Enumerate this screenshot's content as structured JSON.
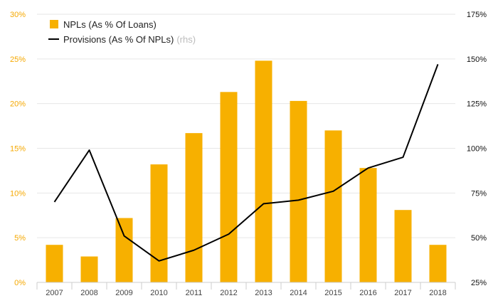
{
  "chart_data": {
    "type": "bar+line",
    "categories": [
      "2007",
      "2008",
      "2009",
      "2010",
      "2011",
      "2012",
      "2013",
      "2014",
      "2015",
      "2016",
      "2017",
      "2018"
    ],
    "series": [
      {
        "name": "NPLs (As % Of Loans)",
        "type": "bar",
        "axis": "left",
        "color": "#f7b000",
        "values": [
          4.2,
          2.9,
          7.2,
          13.2,
          16.7,
          21.3,
          24.8,
          20.3,
          17.0,
          12.8,
          8.1,
          4.2
        ]
      },
      {
        "name": "Provisions (As % Of NPLs)",
        "legend_suffix": "(rhs)",
        "type": "line",
        "axis": "right",
        "color": "#000000",
        "values": [
          70,
          99,
          51,
          37,
          43,
          52,
          69,
          71,
          76,
          89,
          95,
          147
        ]
      }
    ],
    "y_left": {
      "lim": [
        0,
        30
      ],
      "ticks": [
        0,
        5,
        10,
        15,
        20,
        25,
        30
      ],
      "tick_labels": [
        "0%",
        "5%",
        "10%",
        "15%",
        "20%",
        "25%",
        "30%"
      ],
      "color": "#f5a800"
    },
    "y_right": {
      "lim": [
        25,
        175
      ],
      "ticks": [
        25,
        50,
        75,
        100,
        125,
        150,
        175
      ],
      "tick_labels": [
        "25%",
        "50%",
        "75%",
        "100%",
        "125%",
        "150%",
        "175%"
      ],
      "color": "#111111"
    },
    "grid": true,
    "legend": "top-left"
  }
}
